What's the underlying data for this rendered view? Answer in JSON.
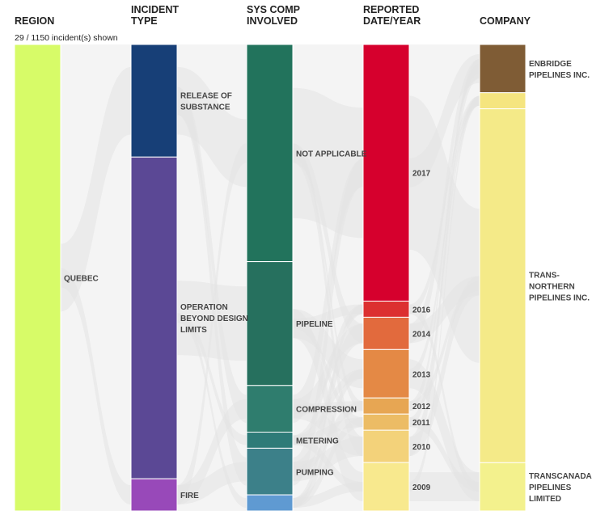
{
  "subtitle": "29 / 1150 incident(s) shown",
  "chart_data": {
    "type": "parallel-sets",
    "title": "",
    "total_shown": 29,
    "total_incidents": 1150,
    "dimensions": [
      {
        "name": "REGION",
        "header": [
          "REGION"
        ],
        "categories": [
          {
            "name": "QUEBEC",
            "label": [
              "QUEBEC"
            ],
            "value": 29,
            "color": "#d7fb68"
          }
        ]
      },
      {
        "name": "INCIDENT TYPE",
        "header": [
          "INCIDENT",
          "TYPE"
        ],
        "categories": [
          {
            "name": "RELEASE OF SUBSTANCE",
            "label": [
              "RELEASE OF",
              "SUBSTANCE"
            ],
            "value": 7,
            "color": "#173f77"
          },
          {
            "name": "OPERATION BEYOND DESIGN LIMITS",
            "label": [
              "OPERATION",
              "BEYOND DESIGN",
              "LIMITS"
            ],
            "value": 20,
            "color": "#5b4895"
          },
          {
            "name": "FIRE",
            "label": [
              "FIRE"
            ],
            "value": 2,
            "color": "#9849b9"
          }
        ]
      },
      {
        "name": "SYS COMP INVOLVED",
        "header": [
          "SYS COMP",
          "INVOLVED"
        ],
        "categories": [
          {
            "name": "NOT APPLICABLE",
            "label": [
              "NOT APPLICABLE"
            ],
            "value": 13.5,
            "color": "#22735c"
          },
          {
            "name": "PIPELINE",
            "label": [
              "PIPELINE"
            ],
            "value": 7.7,
            "color": "#26705e"
          },
          {
            "name": "COMPRESSION",
            "label": [
              "COMPRESSION"
            ],
            "value": 2.9,
            "color": "#2f7d6e"
          },
          {
            "name": "METERING",
            "label": [
              "METERING"
            ],
            "value": 1,
            "color": "#2e7b78"
          },
          {
            "name": "PUMPING",
            "label": [
              "PUMPING"
            ],
            "value": 2.9,
            "color": "#3c8089"
          },
          {
            "name": "",
            "label": [],
            "value": 1,
            "color": "#5f9ad2"
          }
        ]
      },
      {
        "name": "REPORTED DATE/YEAR",
        "header": [
          "REPORTED",
          "DATE/YEAR"
        ],
        "categories": [
          {
            "name": "2017",
            "label": [
              "2017"
            ],
            "value": 15.9,
            "color": "#d6002d"
          },
          {
            "name": "2016",
            "label": [
              "2016"
            ],
            "value": 1,
            "color": "#dc3030"
          },
          {
            "name": "2014",
            "label": [
              "2014"
            ],
            "value": 2,
            "color": "#e26a3d"
          },
          {
            "name": "2013",
            "label": [
              "2013"
            ],
            "value": 3,
            "color": "#e48945"
          },
          {
            "name": "2012",
            "label": [
              "2012"
            ],
            "value": 1,
            "color": "#e7a653"
          },
          {
            "name": "2011",
            "label": [
              "2011"
            ],
            "value": 1,
            "color": "#ecbc65"
          },
          {
            "name": "2010",
            "label": [
              "2010"
            ],
            "value": 2,
            "color": "#f3d27a"
          },
          {
            "name": "2009",
            "label": [
              "2009"
            ],
            "value": 3,
            "color": "#f8e98e"
          }
        ]
      },
      {
        "name": "COMPANY",
        "header": [
          "COMPANY"
        ],
        "categories": [
          {
            "name": "ENBRIDGE PIPELINES INC.",
            "label": [
              "ENBRIDGE",
              "PIPELINES INC."
            ],
            "value": 3,
            "color": "#7f5c35"
          },
          {
            "name": "",
            "label": [],
            "value": 1,
            "color": "#f5e57f"
          },
          {
            "name": "TRANS-NORTHERN PIPELINES INC.",
            "label": [
              "TRANS-",
              "NORTHERN",
              "PIPELINES INC."
            ],
            "value": 22,
            "color": "#f4ea88"
          },
          {
            "name": "TRANSCANADA PIPELINES LIMITED",
            "label": [
              "TRANSCANADA",
              "PIPELINES",
              "LIMITED"
            ],
            "value": 3,
            "color": "#f3f18d"
          }
        ]
      }
    ]
  }
}
